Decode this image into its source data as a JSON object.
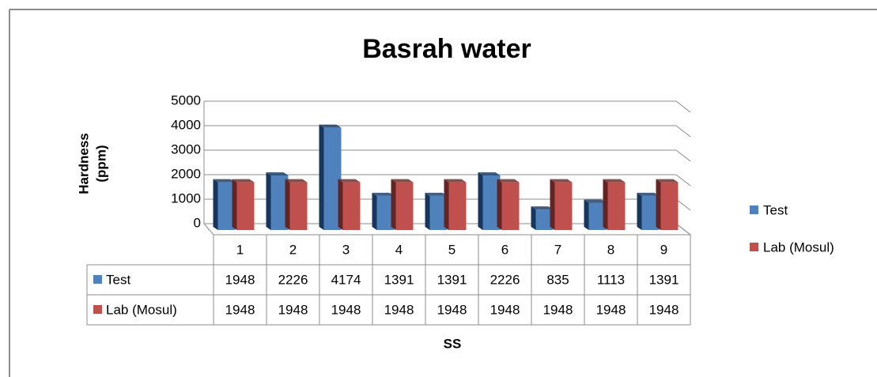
{
  "chart_data": {
    "type": "bar",
    "title": "Basrah water",
    "y_label": [
      "Hardness",
      "(ppm)"
    ],
    "x_label": "SS",
    "categories": [
      "1",
      "2",
      "3",
      "4",
      "5",
      "6",
      "7",
      "8",
      "9"
    ],
    "series": [
      {
        "name": "Test",
        "color": "#4f81bd",
        "values": [
          1948,
          2226,
          4174,
          1391,
          1391,
          2226,
          835,
          1113,
          1391
        ]
      },
      {
        "name": "Lab (Mosul)",
        "color": "#c0504d",
        "values": [
          1948,
          1948,
          1948,
          1948,
          1948,
          1948,
          1948,
          1948,
          1948
        ]
      }
    ],
    "ylim": [
      0,
      5000
    ],
    "yticks": [
      0,
      1000,
      2000,
      3000,
      4000,
      5000
    ],
    "grid": true,
    "legend": "right"
  }
}
